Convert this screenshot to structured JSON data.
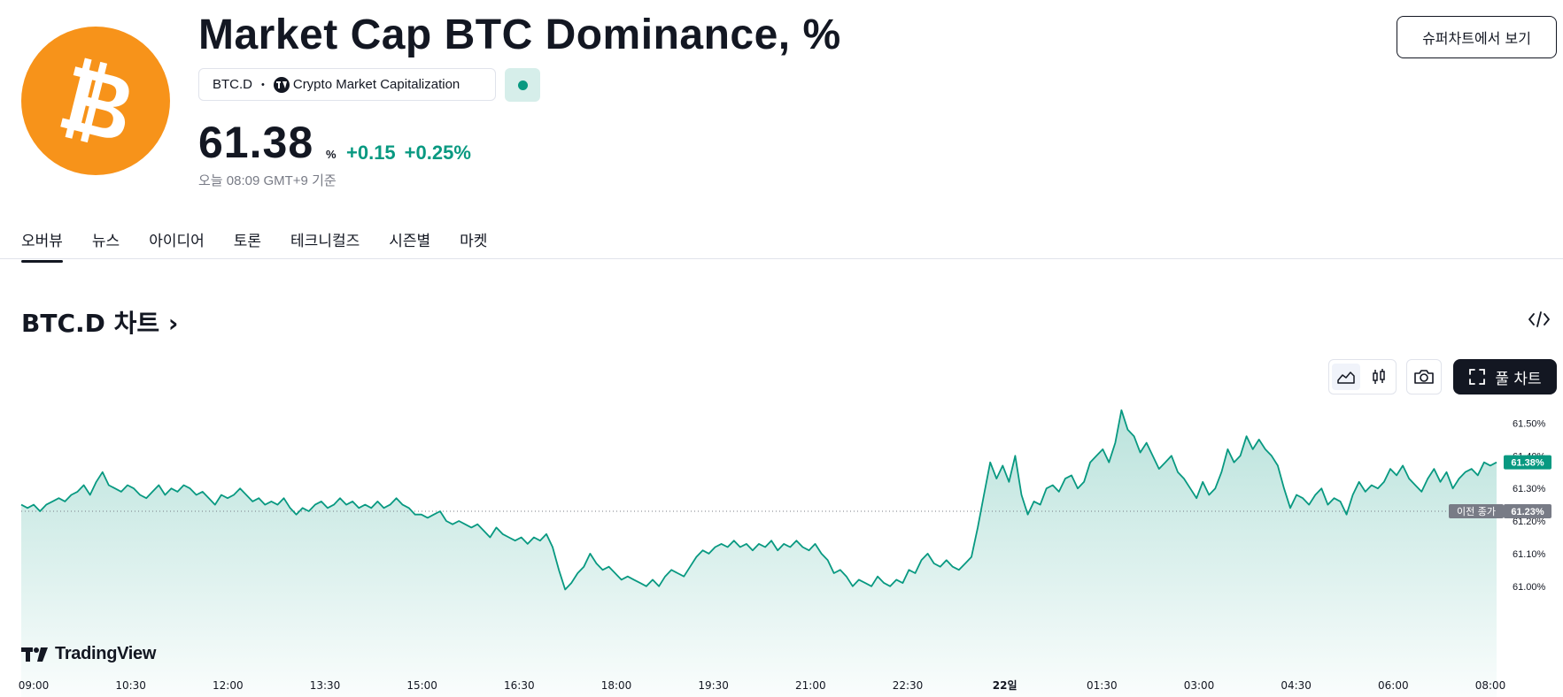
{
  "header": {
    "title": "Market Cap BTC Dominance, %",
    "symbol": "BTC.D",
    "source": "Crypto Market Capitalization",
    "price": "61.38",
    "unit": "%",
    "change_abs": "+0.15",
    "change_pct": "+0.25%",
    "timestamp": "오늘 08:09 GMT+9 기준",
    "supercharts_button": "슈퍼차트에서 보기",
    "logo_icon": "bitcoin-logo",
    "status_icon": "market-status-dot",
    "accent_orange": "#f7931a",
    "positive_color": "#089981"
  },
  "tabs": [
    {
      "label": "오버뷰",
      "active": true
    },
    {
      "label": "뉴스",
      "active": false
    },
    {
      "label": "아이디어",
      "active": false
    },
    {
      "label": "토론",
      "active": false
    },
    {
      "label": "테크니컬즈",
      "active": false
    },
    {
      "label": "시즌별",
      "active": false
    },
    {
      "label": "마켓",
      "active": false
    }
  ],
  "chart_section": {
    "title": "BTC.D 차트",
    "title_arrow": "›",
    "full_chart_button": "풀 차트",
    "embed_icon": "code-embed-icon",
    "area_icon": "area-chart-icon",
    "candle_icon": "candlestick-icon",
    "camera_icon": "camera-icon",
    "fullscreen_icon": "fullscreen-icon",
    "brand": "TradingView"
  },
  "chart_data": {
    "type": "area",
    "x_labels": [
      "09:00",
      "10:30",
      "12:00",
      "13:30",
      "15:00",
      "16:30",
      "18:00",
      "19:30",
      "21:00",
      "22:30",
      "22일",
      "01:30",
      "03:00",
      "04:30",
      "06:00",
      "08:00"
    ],
    "x_label_bold": "22일",
    "y_ticks": [
      "61.50%",
      "61.40%",
      "61.30%",
      "61.20%",
      "61.10%",
      "61.00%"
    ],
    "y_values": [
      61.5,
      61.4,
      61.3,
      61.2,
      61.1,
      61.0
    ],
    "ylim": [
      60.975,
      61.55
    ],
    "last_value": 61.38,
    "last_label": "61.38%",
    "previous_close": 61.23,
    "previous_close_label": "61.23%",
    "previous_close_text": "이전 종가",
    "line_color": "#089981",
    "series": [
      {
        "values": [
          61.25,
          61.24,
          61.25,
          61.23,
          61.25,
          61.26,
          61.27,
          61.26,
          61.28,
          61.29,
          61.31,
          61.28,
          61.32,
          61.35,
          61.31,
          61.3,
          61.29,
          61.31,
          61.3,
          61.28,
          61.27,
          61.29,
          61.31,
          61.28,
          61.3,
          61.29,
          61.31,
          61.3,
          61.28,
          61.29,
          61.27,
          61.25,
          61.28,
          61.27,
          61.28,
          61.3,
          61.28,
          61.26,
          61.27,
          61.25,
          61.26,
          61.25,
          61.27,
          61.24,
          61.22,
          61.24,
          61.23,
          61.25,
          61.26,
          61.24,
          61.25,
          61.27,
          61.25,
          61.26,
          61.24,
          61.25,
          61.24,
          61.26,
          61.24,
          61.25,
          61.27,
          61.25,
          61.24,
          61.22,
          61.22,
          61.21,
          61.22,
          61.23,
          61.2,
          61.19,
          61.2,
          61.19,
          61.18,
          61.19,
          61.17,
          61.15,
          61.18,
          61.16,
          61.15,
          61.14,
          61.15,
          61.13,
          61.15,
          61.14,
          61.16,
          61.12,
          61.05,
          60.99,
          61.01,
          61.04,
          61.06,
          61.1,
          61.07,
          61.05,
          61.06,
          61.04,
          61.02,
          61.03,
          61.02,
          61.01,
          61.0,
          61.02,
          61.0,
          61.03,
          61.05,
          61.04,
          61.03,
          61.06,
          61.09,
          61.11,
          61.1,
          61.12,
          61.13,
          61.12,
          61.14,
          61.12,
          61.13,
          61.11,
          61.13,
          61.12,
          61.14,
          61.11,
          61.13,
          61.12,
          61.14,
          61.12,
          61.11,
          61.13,
          61.1,
          61.08,
          61.04,
          61.05,
          61.03,
          61.0,
          61.02,
          61.01,
          61.0,
          61.03,
          61.01,
          61.0,
          61.02,
          61.01,
          61.05,
          61.04,
          61.08,
          61.1,
          61.07,
          61.06,
          61.08,
          61.06,
          61.05,
          61.07,
          61.09,
          61.18,
          61.28,
          61.38,
          61.33,
          61.37,
          61.32,
          61.4,
          61.28,
          61.22,
          61.26,
          61.25,
          61.3,
          61.31,
          61.29,
          61.33,
          61.34,
          61.3,
          61.32,
          61.38,
          61.4,
          61.42,
          61.38,
          61.44,
          61.54,
          61.48,
          61.46,
          61.41,
          61.44,
          61.4,
          61.36,
          61.38,
          61.4,
          61.35,
          61.33,
          61.3,
          61.27,
          61.32,
          61.28,
          61.3,
          61.35,
          61.42,
          61.38,
          61.4,
          61.46,
          61.42,
          61.45,
          61.42,
          61.4,
          61.37,
          61.3,
          61.24,
          61.28,
          61.27,
          61.25,
          61.28,
          61.3,
          61.25,
          61.27,
          61.26,
          61.22,
          61.28,
          61.32,
          61.29,
          61.31,
          61.3,
          61.32,
          61.36,
          61.34,
          61.37,
          61.33,
          61.31,
          61.29,
          61.33,
          61.36,
          61.32,
          61.35,
          61.3,
          61.33,
          61.35,
          61.36,
          61.34,
          61.38,
          61.37,
          61.38
        ]
      }
    ]
  }
}
